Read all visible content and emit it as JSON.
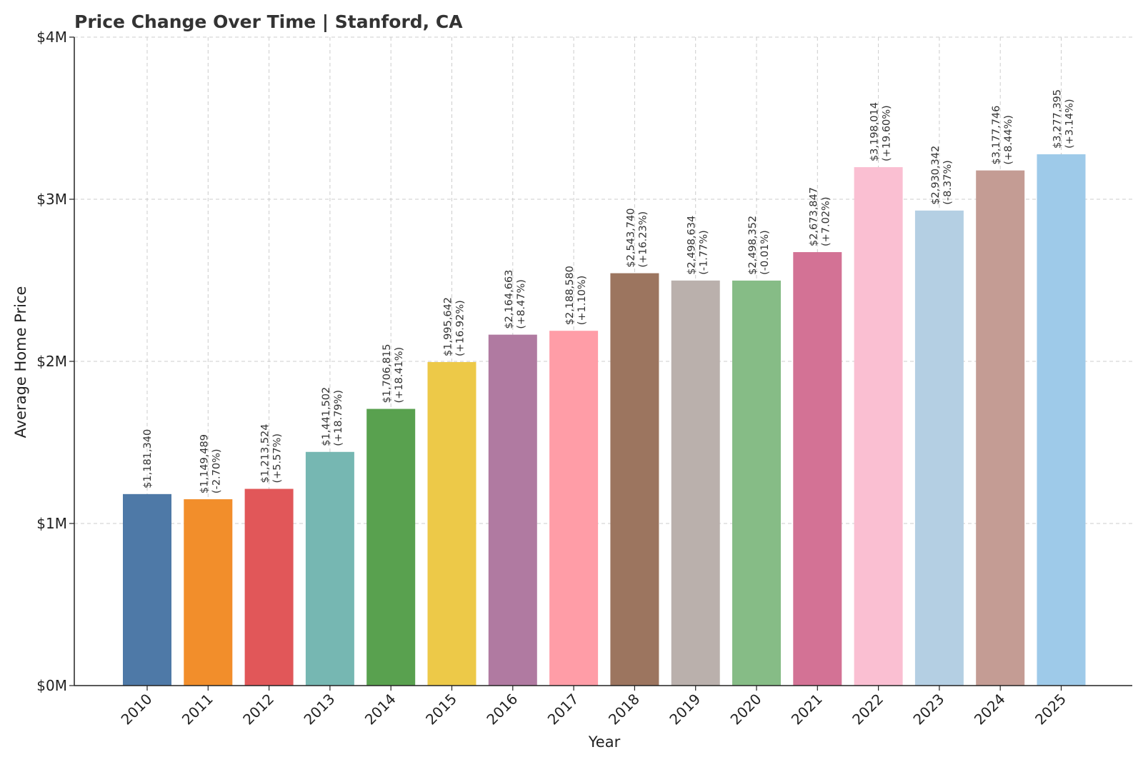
{
  "chart_data": {
    "type": "bar",
    "title": "Price Change Over Time | Stanford, CA",
    "xlabel": "Year",
    "ylabel": "Average Home Price",
    "ylim": [
      0,
      4000000
    ],
    "yticks": [
      0,
      1000000,
      2000000,
      3000000,
      4000000
    ],
    "ytick_labels": [
      "$0M",
      "$1M",
      "$2M",
      "$3M",
      "$4M"
    ],
    "grid": true,
    "categories": [
      "2010",
      "2011",
      "2012",
      "2013",
      "2014",
      "2015",
      "2016",
      "2017",
      "2018",
      "2019",
      "2020",
      "2021",
      "2022",
      "2023",
      "2024",
      "2025"
    ],
    "values": [
      1181340,
      1149489,
      1213524,
      1441502,
      1706815,
      1995642,
      2164663,
      2188580,
      2543740,
      2498634,
      2498352,
      2673847,
      3198014,
      2930342,
      3177746,
      3277395
    ],
    "value_labels": [
      "$1,181,340",
      "$1,149,489",
      "$1,213,524",
      "$1,441,502",
      "$1,706,815",
      "$1,995,642",
      "$2,164,663",
      "$2,188,580",
      "$2,543,740",
      "$2,498,634",
      "$2,498,352",
      "$2,673,847",
      "$3,198,014",
      "$2,930,342",
      "$3,177,746",
      "$3,277,395"
    ],
    "change_labels": [
      "",
      "(-2.70%)",
      "(+5.57%)",
      "(+18.79%)",
      "(+18.41%)",
      "(+16.92%)",
      "(+8.47%)",
      "(+1.10%)",
      "(+16.23%)",
      "(-1.77%)",
      "(-0.01%)",
      "(+7.02%)",
      "(+19.60%)",
      "(-8.37%)",
      "(+8.44%)",
      "(+3.14%)"
    ],
    "colors": [
      "#4e79a7",
      "#f28e2b",
      "#e15759",
      "#76b7b2",
      "#59a14f",
      "#edc948",
      "#b07aa1",
      "#ff9da7",
      "#9c755f",
      "#bab0ac",
      "#86bc86",
      "#d37295",
      "#fabfd2",
      "#b4cfe3",
      "#c49c94",
      "#9ecae9"
    ]
  }
}
